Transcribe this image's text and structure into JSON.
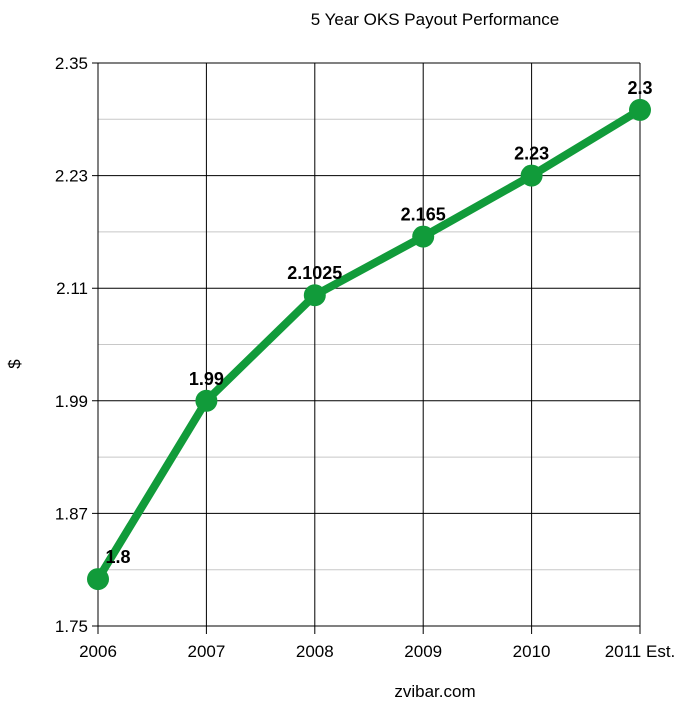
{
  "chart_data": {
    "type": "line",
    "title": "5 Year OKS Payout Performance",
    "xlabel": "zvibar.com",
    "ylabel": "$",
    "categories": [
      "2006",
      "2007",
      "2008",
      "2009",
      "2010",
      "2011 Est."
    ],
    "series": [
      {
        "values": [
          1.8,
          1.99,
          2.1025,
          2.165,
          2.23,
          2.3
        ],
        "data_labels": [
          "1.8",
          "1.99",
          "2.1025",
          "2.165",
          "2.23",
          "2.3"
        ]
      }
    ],
    "ylim": [
      1.75,
      2.35
    ],
    "yticks": [
      1.75,
      1.87,
      1.99,
      2.11,
      2.23,
      2.35
    ],
    "ytick_labels": [
      "1.75",
      "1.87",
      "1.99",
      "2.11",
      "2.23",
      "2.35"
    ],
    "minor_gridlines": true,
    "grid": true,
    "legend": "none",
    "colors": {
      "line": "#119b3a",
      "major_grid": "#000000",
      "minor_grid": "#c8c8c8"
    }
  }
}
